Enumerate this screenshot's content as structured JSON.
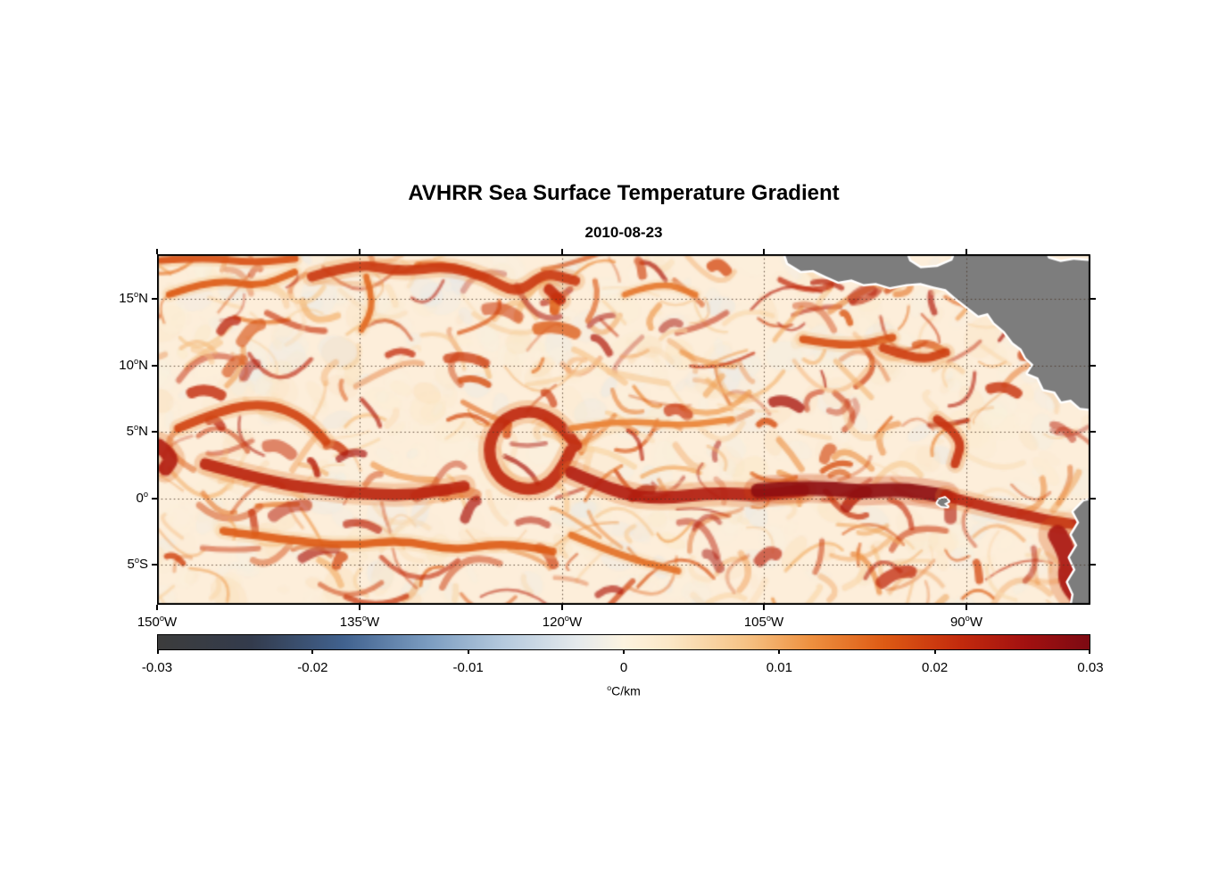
{
  "title": "AVHRR Sea Surface Temperature Gradient",
  "subtitle": "2010-08-23",
  "colors": {
    "background": "#ffffff",
    "land": "#7d7d7d",
    "coast": "#ffffff",
    "axis": "#000000",
    "sea_base": "#fdeeda",
    "grid": "rgba(70,50,35,0.85)"
  },
  "axes": {
    "x_ticks": [
      {
        "f": 0.0,
        "label": "150^oW"
      },
      {
        "f": 0.217,
        "label": "135^oW"
      },
      {
        "f": 0.434,
        "label": "120^oW"
      },
      {
        "f": 0.6501,
        "label": "105^oW"
      },
      {
        "f": 0.8671,
        "label": "90^oW"
      }
    ],
    "y_ticks": [
      {
        "f": 0.1272,
        "label": "15^oN"
      },
      {
        "f": 0.3181,
        "label": "10^oN"
      },
      {
        "f": 0.5064,
        "label": "5^oN"
      },
      {
        "f": 0.6972,
        "label": "0^o"
      },
      {
        "f": 0.8855,
        "label": "5^oS"
      }
    ]
  },
  "colorbar": {
    "units": "^oC/km",
    "ticks": [
      {
        "f": 0.0,
        "label": "-0.03"
      },
      {
        "f": 0.1667,
        "label": "-0.02"
      },
      {
        "f": 0.3333,
        "label": "-0.01"
      },
      {
        "f": 0.5,
        "label": "0"
      },
      {
        "f": 0.6667,
        "label": "0.01"
      },
      {
        "f": 0.8333,
        "label": "0.02"
      },
      {
        "f": 1.0,
        "label": "0.03"
      }
    ],
    "stops": [
      {
        "t": 0.0,
        "c": "#3c3c3c"
      },
      {
        "t": 0.1,
        "c": "#333b4c"
      },
      {
        "t": 0.2,
        "c": "#41628f"
      },
      {
        "t": 0.29,
        "c": "#7b9cc0"
      },
      {
        "t": 0.37,
        "c": "#b4c9dd"
      },
      {
        "t": 0.45,
        "c": "#e4e9ec"
      },
      {
        "t": 0.5,
        "c": "#fcf3e0"
      },
      {
        "t": 0.55,
        "c": "#fbe7c6"
      },
      {
        "t": 0.63,
        "c": "#f6c386"
      },
      {
        "t": 0.7,
        "c": "#ee9140"
      },
      {
        "t": 0.78,
        "c": "#dd5a14"
      },
      {
        "t": 0.86,
        "c": "#c32b0d"
      },
      {
        "t": 0.93,
        "c": "#a31110"
      },
      {
        "t": 1.0,
        "c": "#7d0a12"
      }
    ]
  },
  "chart_data": {
    "type": "heatmap",
    "title": "AVHRR Sea Surface Temperature Gradient",
    "date": "2010-08-23",
    "variable": "sea surface temperature gradient",
    "units": "°C/km",
    "value_range": [
      -0.03,
      0.03
    ],
    "x_axis": {
      "label": "longitude",
      "ticks_deg_west": [
        150,
        135,
        120,
        105,
        90
      ],
      "approx_range_deg_west": [
        150,
        81
      ]
    },
    "y_axis": {
      "label": "latitude",
      "ticks_deg": [
        15,
        10,
        5,
        0,
        -5
      ],
      "approx_range_deg": [
        -8,
        18.4
      ]
    },
    "land": [
      "Mexico / Central America landmass in upper right (gray with white coastline)",
      "South American coast sliver at lower right",
      "Galapagos Islands speck near 91W, 0.5S"
    ],
    "notable_features": [
      "Sharp equatorial SST front with tropical-instability-wave cusps along 0-3N from ~145W to the American coast",
      "Closed vortex ring of strong gradient near 125W, 3N",
      "Filamentary positive gradients (+0.01 to +0.03 C/km) over a pale near-zero background across the basin",
      "Strongest maroon gradients (~0.025-0.03 C/km) on the front between 110W and 95W and along the Peru/Ecuador coast"
    ],
    "fronts": [
      {
        "pts": [
          [
            0.052,
            0.598
          ],
          [
            0.119,
            0.649
          ],
          [
            0.195,
            0.679
          ],
          [
            0.272,
            0.69
          ],
          [
            0.329,
            0.662
          ]
        ],
        "w": 13,
        "t": 0.88
      },
      {
        "pts": [
          [
            0.443,
            0.56
          ],
          [
            0.429,
            0.644
          ],
          [
            0.398,
            0.679
          ],
          [
            0.366,
            0.644
          ],
          [
            0.353,
            0.56
          ],
          [
            0.366,
            0.476
          ],
          [
            0.398,
            0.44
          ],
          [
            0.429,
            0.476
          ],
          [
            0.449,
            0.545
          ]
        ],
        "w": 13,
        "t": 0.87
      },
      {
        "pts": [
          [
            0.444,
            0.623
          ],
          [
            0.491,
            0.679
          ],
          [
            0.539,
            0.7
          ],
          [
            0.597,
            0.679
          ],
          [
            0.644,
            0.69
          ],
          [
            0.692,
            0.674
          ]
        ],
        "w": 14,
        "t": 0.9
      },
      {
        "pts": [
          [
            0.644,
            0.674
          ],
          [
            0.702,
            0.662
          ],
          [
            0.75,
            0.679
          ],
          [
            0.797,
            0.669
          ],
          [
            0.845,
            0.69
          ]
        ],
        "w": 16,
        "t": 0.97
      },
      {
        "pts": [
          [
            0.845,
            0.69
          ],
          [
            0.888,
            0.72
          ],
          [
            0.931,
            0.745
          ],
          [
            0.969,
            0.766
          ],
          [
            0.998,
            0.776
          ]
        ],
        "w": 12,
        "t": 0.88
      },
      {
        "pts": [
          [
            0.965,
            0.801
          ],
          [
            0.979,
            0.865
          ],
          [
            0.974,
            0.929
          ],
          [
            0.989,
            0.98
          ]
        ],
        "w": 22,
        "t": 0.92
      },
      {
        "pts": [
          [
            0.166,
            0.064
          ],
          [
            0.214,
            0.025
          ],
          [
            0.262,
            0.051
          ],
          [
            0.31,
            0.033
          ],
          [
            0.353,
            0.064
          ],
          [
            0.386,
            0.115
          ],
          [
            0.415,
            0.051
          ],
          [
            0.448,
            0.076
          ]
        ],
        "w": 11,
        "t": 0.84
      },
      {
        "pts": [
          [
            0.013,
            0.115
          ],
          [
            0.061,
            0.069
          ],
          [
            0.109,
            0.094
          ],
          [
            0.147,
            0.051
          ]
        ],
        "w": 8,
        "t": 0.78
      },
      {
        "pts": [
          [
            0.023,
            0.496
          ],
          [
            0.071,
            0.44
          ],
          [
            0.119,
            0.425
          ],
          [
            0.157,
            0.466
          ],
          [
            0.181,
            0.534
          ]
        ],
        "w": 10,
        "t": 0.82
      },
      {
        "pts": [
          [
            0.002,
            0.547
          ],
          [
            0.018,
            0.578
          ],
          [
            0.009,
            0.611
          ]
        ],
        "w": 16,
        "t": 0.9
      },
      {
        "pts": [
          [
            0.071,
            0.789
          ],
          [
            0.138,
            0.814
          ],
          [
            0.205,
            0.832
          ],
          [
            0.262,
            0.814
          ],
          [
            0.319,
            0.847
          ],
          [
            0.367,
            0.822
          ],
          [
            0.424,
            0.847
          ]
        ],
        "w": 9,
        "t": 0.78
      },
      {
        "pts": [
          [
            0.444,
            0.801
          ],
          [
            0.501,
            0.865
          ],
          [
            0.558,
            0.903
          ]
        ],
        "w": 8,
        "t": 0.75
      },
      {
        "pts": [
          [
            0.692,
            0.242
          ],
          [
            0.74,
            0.267
          ],
          [
            0.788,
            0.237
          ]
        ],
        "w": 9,
        "t": 0.8
      },
      {
        "pts": [
          [
            0.778,
            0.267
          ],
          [
            0.816,
            0.305
          ],
          [
            0.845,
            0.28
          ]
        ],
        "w": 10,
        "t": 0.83
      },
      {
        "pts": [
          [
            0.836,
            0.471
          ],
          [
            0.864,
            0.522
          ],
          [
            0.855,
            0.598
          ]
        ],
        "w": 10,
        "t": 0.85
      },
      {
        "pts": [
          [
            0.444,
            0.496
          ],
          [
            0.501,
            0.471
          ],
          [
            0.558,
            0.491
          ],
          [
            0.616,
            0.471
          ]
        ],
        "w": 7,
        "t": 0.72
      },
      {
        "pts": [
          [
            0.501,
            0.115
          ],
          [
            0.539,
            0.076
          ],
          [
            0.577,
            0.115
          ]
        ],
        "w": 7,
        "t": 0.74
      },
      {
        "pts": [
          [
            0.004,
            0.018
          ],
          [
            0.052,
            0.008
          ],
          [
            0.1,
            0.025
          ],
          [
            0.148,
            0.013
          ]
        ],
        "w": 8,
        "t": 0.8
      },
      {
        "pts": [
          [
            0.224,
            0.064
          ],
          [
            0.234,
            0.14
          ],
          [
            0.219,
            0.216
          ]
        ],
        "w": 7,
        "t": 0.76
      },
      {
        "pts": [
          [
            0.42,
            0.1
          ],
          [
            0.432,
            0.13
          ]
        ],
        "w": 12,
        "t": 0.86
      }
    ],
    "land_polys": {
      "pacific": [
        [
          0.669,
          -0.03
        ],
        [
          0.676,
          0.025
        ],
        [
          0.69,
          0.048
        ],
        [
          0.703,
          0.045
        ],
        [
          0.716,
          0.062
        ],
        [
          0.73,
          0.078
        ],
        [
          0.744,
          0.072
        ],
        [
          0.757,
          0.085
        ],
        [
          0.77,
          0.082
        ],
        [
          0.785,
          0.094
        ],
        [
          0.803,
          0.085
        ],
        [
          0.818,
          0.082
        ],
        [
          0.832,
          0.092
        ],
        [
          0.845,
          0.1
        ],
        [
          0.856,
          0.125
        ],
        [
          0.868,
          0.15
        ],
        [
          0.88,
          0.175
        ],
        [
          0.89,
          0.168
        ],
        [
          0.897,
          0.195
        ],
        [
          0.908,
          0.22
        ],
        [
          0.917,
          0.252
        ],
        [
          0.926,
          0.27
        ],
        [
          0.931,
          0.295
        ],
        [
          0.939,
          0.315
        ],
        [
          0.933,
          0.34
        ],
        [
          0.944,
          0.352
        ],
        [
          0.95,
          0.385
        ],
        [
          0.962,
          0.392
        ],
        [
          0.969,
          0.42
        ],
        [
          0.979,
          0.415
        ],
        [
          0.989,
          0.438
        ],
        [
          1.03,
          0.45
        ],
        [
          1.03,
          -0.03
        ]
      ],
      "notches": [
        [
          [
            0.8,
            -0.02
          ],
          [
            0.806,
            0.02
          ],
          [
            0.818,
            0.04
          ],
          [
            0.836,
            0.036
          ],
          [
            0.852,
            0.018
          ],
          [
            0.858,
            -0.02
          ]
        ],
        [
          [
            0.948,
            -0.02
          ],
          [
            0.955,
            0.012
          ],
          [
            0.968,
            0.022
          ],
          [
            0.982,
            0.016
          ],
          [
            1.02,
            0.024
          ],
          [
            1.02,
            -0.02
          ]
        ]
      ],
      "south_america": [
        [
          1.03,
          0.68
        ],
        [
          0.993,
          0.705
        ],
        [
          0.982,
          0.735
        ],
        [
          0.988,
          0.765
        ],
        [
          0.98,
          0.8
        ],
        [
          0.986,
          0.83
        ],
        [
          0.978,
          0.865
        ],
        [
          0.984,
          0.9
        ],
        [
          0.976,
          0.935
        ],
        [
          0.982,
          0.97
        ],
        [
          0.978,
          1.03
        ],
        [
          1.03,
          1.03
        ]
      ],
      "galapagos": [
        [
          0.838,
          0.7
        ],
        [
          0.844,
          0.695
        ],
        [
          0.848,
          0.705
        ],
        [
          0.843,
          0.712
        ],
        [
          0.847,
          0.72
        ],
        [
          0.84,
          0.718
        ],
        [
          0.836,
          0.71
        ]
      ]
    },
    "texture": {
      "seed": 7,
      "mottle_count": 550,
      "filament_count": 380,
      "strong_count": 60
    }
  }
}
